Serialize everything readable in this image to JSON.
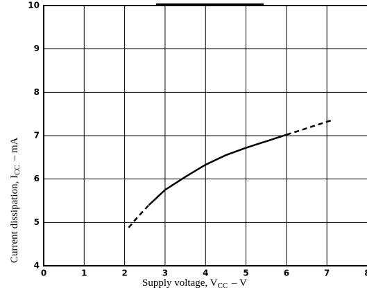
{
  "chart_data": {
    "type": "line",
    "xlabel": {
      "text": "Supply voltage, V",
      "sub": "CC",
      "unit": "–  V"
    },
    "ylabel": {
      "text": "Current dissipation, I",
      "sub": "CC",
      "unit": "–  mA"
    },
    "x": [
      2.1,
      2.3,
      2.6,
      3,
      3.5,
      4,
      4.5,
      5,
      5.5,
      6,
      6.5,
      7.1
    ],
    "series": [
      {
        "color": "#000000",
        "dashed": true,
        "values": [
          4.88,
          5.1,
          5.4,
          null,
          null,
          null,
          null,
          null,
          null,
          7.02,
          7.17,
          7.35
        ]
      },
      {
        "color": "#000000",
        "dashed": false,
        "values": [
          null,
          null,
          5.4,
          5.75,
          6.05,
          6.33,
          6.55,
          6.72,
          6.87,
          7.02,
          null,
          null
        ]
      }
    ],
    "xlim": [
      0,
      8
    ],
    "xticks": [
      0,
      1,
      2,
      3,
      4,
      5,
      6,
      7,
      8
    ],
    "ylim": [
      4,
      10
    ],
    "yticks": [
      4,
      5,
      6,
      7,
      8,
      9,
      10
    ],
    "grid": true
  }
}
